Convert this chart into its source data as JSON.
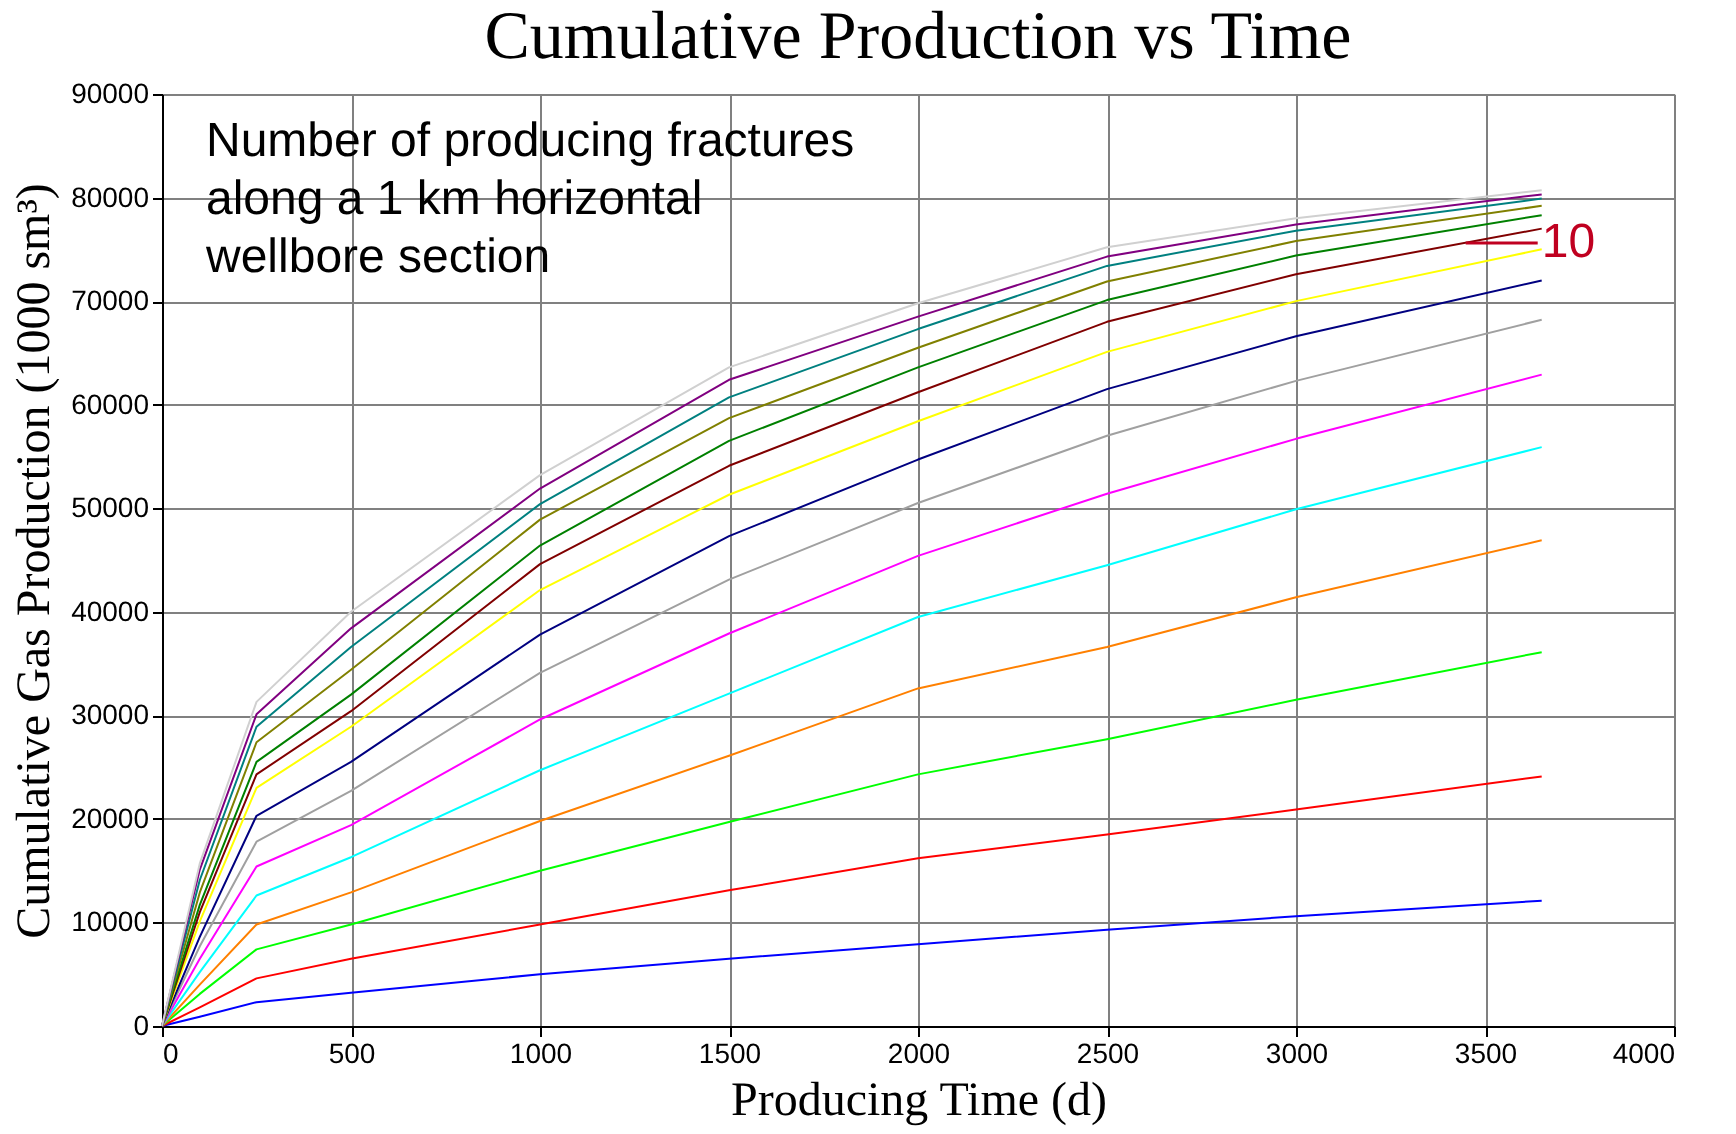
{
  "chart_data": {
    "type": "line",
    "title": "Cumulative Production vs Time",
    "xlabel": "Producing Time (d)",
    "ylabel": "Cumulative Gas Production (1000 sm³)",
    "x": [
      0,
      100,
      250,
      500,
      1000,
      1500,
      2000,
      2500,
      3000,
      3650
    ],
    "series": [
      {
        "color": "#0000ff",
        "values": [
          0,
          900,
          2300,
          3200,
          5000,
          6500,
          7900,
          9300,
          10600,
          12100
        ]
      },
      {
        "color": "#ff0000",
        "values": [
          0,
          1800,
          4600,
          6500,
          9800,
          13100,
          16200,
          18500,
          20900,
          24100
        ]
      },
      {
        "color": "#00ff00",
        "values": [
          0,
          3100,
          7400,
          9800,
          15000,
          19700,
          24300,
          27700,
          31500,
          36100
        ]
      },
      {
        "color": "#ff8000",
        "values": [
          0,
          4000,
          9800,
          12900,
          19800,
          26100,
          32600,
          36600,
          41400,
          46900
        ]
      },
      {
        "color": "#00ffff",
        "values": [
          0,
          5200,
          12600,
          16300,
          24700,
          32100,
          39500,
          44500,
          49900,
          55900
        ]
      },
      {
        "color": "#ff00ff",
        "values": [
          0,
          6500,
          15400,
          19400,
          29600,
          37900,
          45400,
          51400,
          56700,
          62900
        ]
      },
      {
        "color": "#a0a0a0",
        "values": [
          0,
          7700,
          17800,
          22700,
          34100,
          43100,
          50500,
          57000,
          62300,
          68200
        ]
      },
      {
        "color": "#000080",
        "values": [
          0,
          8600,
          20300,
          25500,
          37800,
          47300,
          54700,
          61500,
          66600,
          72000
        ]
      },
      {
        "color": "#ffff00",
        "values": [
          0,
          10100,
          23000,
          28900,
          42100,
          51300,
          58400,
          65100,
          70000,
          75000
        ]
      },
      {
        "color": "#800000",
        "values": [
          0,
          11000,
          24300,
          30400,
          44600,
          54100,
          61200,
          68000,
          72600,
          77000
        ]
      },
      {
        "color": "#008000",
        "values": [
          0,
          11700,
          25500,
          32000,
          46400,
          56500,
          63600,
          70100,
          74400,
          78300
        ]
      },
      {
        "color": "#808000",
        "values": [
          0,
          12900,
          27400,
          34400,
          48900,
          58700,
          65500,
          71900,
          75800,
          79200
        ]
      },
      {
        "color": "#008080",
        "values": [
          0,
          14100,
          28900,
          36600,
          50400,
          60700,
          67300,
          73400,
          76800,
          79900
        ]
      },
      {
        "color": "#800080",
        "values": [
          0,
          15100,
          30100,
          38400,
          51900,
          62400,
          68500,
          74300,
          77400,
          80300
        ]
      },
      {
        "color": "#d0d0d0",
        "values": [
          0,
          15700,
          31300,
          40000,
          53200,
          63600,
          69800,
          75200,
          78000,
          80700
        ]
      }
    ],
    "xlim": [
      0,
      4000
    ],
    "xticks": [
      0,
      500,
      1000,
      1500,
      2000,
      2500,
      3000,
      3500,
      4000
    ],
    "ylim": [
      0,
      90000
    ],
    "yticks": [
      0,
      10000,
      20000,
      30000,
      40000,
      50000,
      60000,
      70000,
      80000,
      90000
    ],
    "grid": true,
    "legend": false,
    "marker": "none",
    "line_style": "solid",
    "annotations": [
      "Number of producing fractures\nalong a 1 km horizontal\nwellbore section",
      {
        "text": "10",
        "x": 3650,
        "y": 75600
      }
    ]
  }
}
